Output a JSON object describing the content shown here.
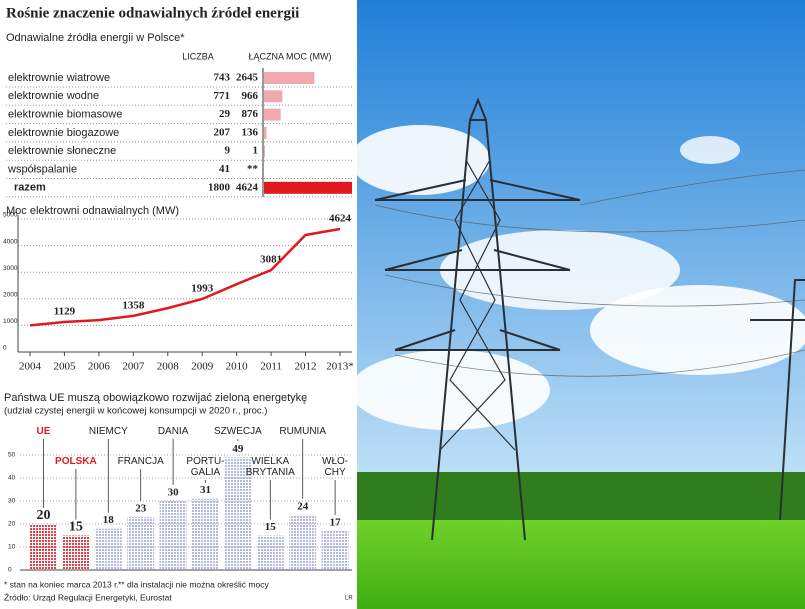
{
  "title": "Rośnie znaczenie odnawialnych źródeł energii",
  "chart_data": [
    {
      "type": "table-bar",
      "subtitle": "Odnawialne źródła energii w Polsce*",
      "categories": [
        "elektrownie wiatrowe",
        "elektrownie wodne",
        "elektrownie biomasowe",
        "elektrownie biogazowe",
        "elektrownie słoneczne",
        "współspalanie",
        "razem"
      ],
      "series": [
        {
          "name": "LICZBA",
          "values": [
            743,
            771,
            29,
            207,
            9,
            41,
            1800
          ]
        },
        {
          "name": "ŁĄCZNA MOC (MW)",
          "color": "#f2a9ae",
          "total_color": "#e0191e",
          "values": [
            2645,
            966,
            876,
            136,
            1,
            null,
            4624
          ],
          "value_labels": [
            "2645",
            "966",
            "876",
            "136",
            "1",
            "**",
            "4624"
          ]
        }
      ]
    },
    {
      "type": "line",
      "title": "Moc elektrowni odnawialnych (MW)",
      "color": "#e0191e",
      "categories": [
        "2004",
        "2005",
        "2006",
        "2007",
        "2008",
        "2009",
        "2010",
        "2011",
        "2012",
        "2013*"
      ],
      "values": [
        1000,
        1129,
        1200,
        1358,
        1650,
        1993,
        2550,
        3081,
        4400,
        4624
      ],
      "value_labels": [
        null,
        "1129",
        null,
        "1358",
        null,
        "1993",
        null,
        "3081",
        null,
        "4624"
      ],
      "ylim": [
        0,
        5000
      ],
      "yticks": [
        0,
        1000,
        2000,
        3000,
        4000,
        5000
      ],
      "grid": true
    },
    {
      "type": "bar",
      "title": "Państwa UE muszą obowiązkowo rozwijać zieloną energetykę",
      "subtitle": "(udział czystej energii w końcowej konsumpcji w 2020 r., proc.)",
      "categories": [
        "UE",
        "POLSKA",
        "NIEMCY",
        "FRANCJA",
        "DANIA",
        "PORTU-\nGALIA",
        "SZWECJA",
        "WIELKA\nBRYTANIA",
        "RUMUNIA",
        "WŁO-\nCHY"
      ],
      "values": [
        20,
        15,
        18,
        23,
        30,
        31,
        49,
        15,
        24,
        17
      ],
      "colors": [
        "#e8404a",
        "#e8404a",
        "#b4b9e4",
        "#b4b9e4",
        "#b4b9e4",
        "#b4b9e4",
        "#b4b9e4",
        "#b4b9e4",
        "#b4b9e4",
        "#b4b9e4"
      ],
      "ylim": [
        0,
        50
      ],
      "yticks": [
        0,
        10,
        20,
        30,
        40,
        50
      ],
      "grid": true
    }
  ],
  "footnotes": [
    "* stan na koniec marca 2013 r.",
    "** dla instalacji nie można określić mocy"
  ],
  "source": "Źródło: Urząd Regulacji Energetyki, Eurostat",
  "credit": "LR"
}
